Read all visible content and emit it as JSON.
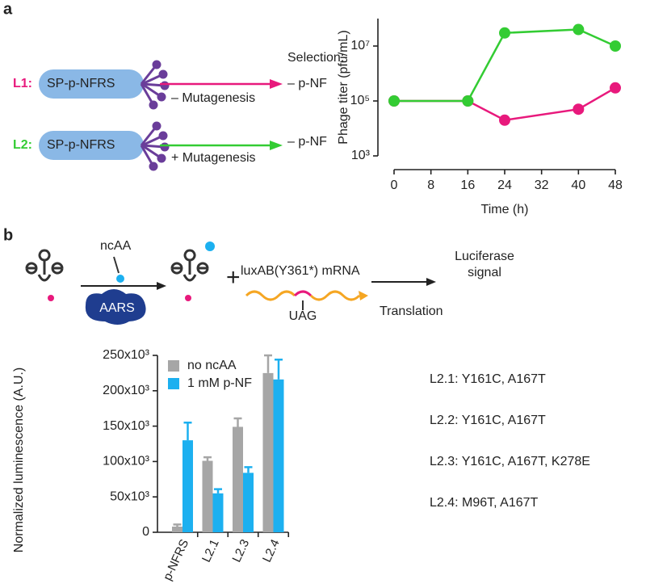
{
  "panels": {
    "a_label": "a",
    "b_label": "b",
    "l1_label": "L1:",
    "l2_label": "L2:",
    "l1_construct": "SP-p-NFRS",
    "l2_construct": "SP-p-NFRS",
    "selection": "Selection:",
    "l1_selection": "– p-NF",
    "l2_selection": "– p-NF",
    "l1_condition": "– Mutagenesis",
    "l2_condition": "+ Mutagenesis",
    "ncaa": "ncAA",
    "aars": "AARS",
    "plus": "+",
    "mrna": "luxAB(Y361*) mRNA",
    "codon": "UAG",
    "translation": "Translation",
    "signal_line1": "Luciferase",
    "signal_line2": "signal",
    "mutations": [
      "L2.1: Y161C, A167T",
      "L2.2: Y161C, A167T",
      "L2.3: Y161C, A167T, K278E",
      "L2.4: M96T, A167T"
    ]
  },
  "chart_data": [
    {
      "type": "line",
      "x_label": "Time (h)",
      "y_label": "Phage titer (pfu/mL)",
      "xlim": [
        0,
        48
      ],
      "xticks": [
        0,
        8,
        16,
        24,
        32,
        40,
        48
      ],
      "ylim": [
        1000,
        100000000
      ],
      "log_y": true,
      "yticks": [
        {
          "value": 1000,
          "label": "10³"
        },
        {
          "value": 100000,
          "label": "10⁵"
        },
        {
          "value": 10000000,
          "label": "10⁷"
        }
      ],
      "series": [
        {
          "color": "#e8197c",
          "x": [
            0,
            16,
            24,
            40,
            48
          ],
          "values": [
            100000,
            100000,
            20000,
            50000,
            300000
          ]
        },
        {
          "color": "#33cc33",
          "x": [
            0,
            16,
            24,
            40,
            48
          ],
          "values": [
            100000,
            100000,
            30000000,
            40000000,
            10000000
          ]
        }
      ]
    },
    {
      "type": "bar",
      "y_label": "Normalized luminescence (A.U.)",
      "categories": [
        "p-NFRS",
        "L2.1",
        "L2.3",
        "L2.4"
      ],
      "ylim": [
        0,
        250000
      ],
      "yticks": [
        0,
        {
          "value": 50000,
          "label": "50x10³"
        },
        {
          "value": 100000,
          "label": "100x10³"
        },
        {
          "value": 150000,
          "label": "150x10³"
        },
        {
          "value": 200000,
          "label": "200x10³"
        },
        {
          "value": 250000,
          "label": "250x10³"
        }
      ],
      "series": [
        {
          "name": "no ncAA",
          "color": "#a6a6a6",
          "values": [
            8000,
            101000,
            149000,
            225000
          ],
          "errors": [
            3000,
            5000,
            12000,
            25000
          ]
        },
        {
          "name": "1 mM p-NF",
          "color": "#1cb0f0",
          "values": [
            130000,
            55000,
            84000,
            216000
          ],
          "errors": [
            25000,
            6000,
            8000,
            28000
          ]
        }
      ]
    }
  ]
}
